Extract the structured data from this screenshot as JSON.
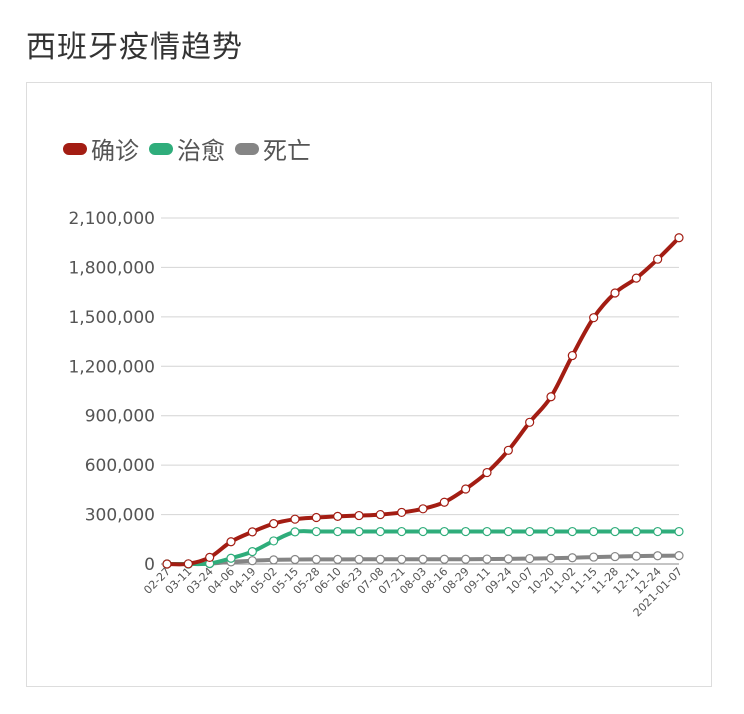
{
  "title": "西班牙疫情趋势",
  "chart_data": {
    "type": "line",
    "title": "",
    "xlabel": "",
    "ylabel": "",
    "ylim": [
      0,
      2100000
    ],
    "yticks": [
      0,
      300000,
      600000,
      900000,
      1200000,
      1500000,
      1800000,
      2100000
    ],
    "ytick_labels": [
      "0",
      "300,000",
      "600,000",
      "900,000",
      "1,200,000",
      "1,500,000",
      "1,800,000",
      "2,100,000"
    ],
    "categories": [
      "02-27",
      "03-11",
      "03-24",
      "04-06",
      "04-19",
      "05-02",
      "05-15",
      "05-28",
      "06-10",
      "06-23",
      "07-08",
      "07-21",
      "08-03",
      "08-16",
      "08-29",
      "09-11",
      "09-24",
      "10-07",
      "10-20",
      "11-02",
      "11-15",
      "11-28",
      "12-11",
      "12-24",
      "2021-01-07"
    ],
    "legend_position": "top-left",
    "grid": true,
    "series": [
      {
        "name": "确诊",
        "color": "#a31d13",
        "values": [
          30,
          1000,
          40000,
          135000,
          195000,
          245000,
          272000,
          282000,
          289000,
          294000,
          300000,
          313000,
          335000,
          375000,
          455000,
          555000,
          690000,
          860000,
          1015000,
          1265000,
          1495000,
          1645000,
          1735000,
          1850000,
          1980000
        ]
      },
      {
        "name": "治愈",
        "color": "#2fad7b",
        "values": [
          0,
          0,
          3000,
          35000,
          75000,
          140000,
          195000,
          197000,
          197000,
          197000,
          197000,
          197000,
          197000,
          197000,
          197000,
          197000,
          197000,
          197000,
          197000,
          197000,
          197000,
          197000,
          197000,
          197000,
          197000
        ]
      },
      {
        "name": "死亡",
        "color": "#858585",
        "values": [
          0,
          30,
          2000,
          13000,
          20000,
          25000,
          27500,
          28000,
          28000,
          28500,
          28500,
          28500,
          29000,
          29000,
          29000,
          30000,
          31000,
          33000,
          35000,
          38000,
          42000,
          45000,
          48000,
          50000,
          51000
        ]
      }
    ]
  }
}
